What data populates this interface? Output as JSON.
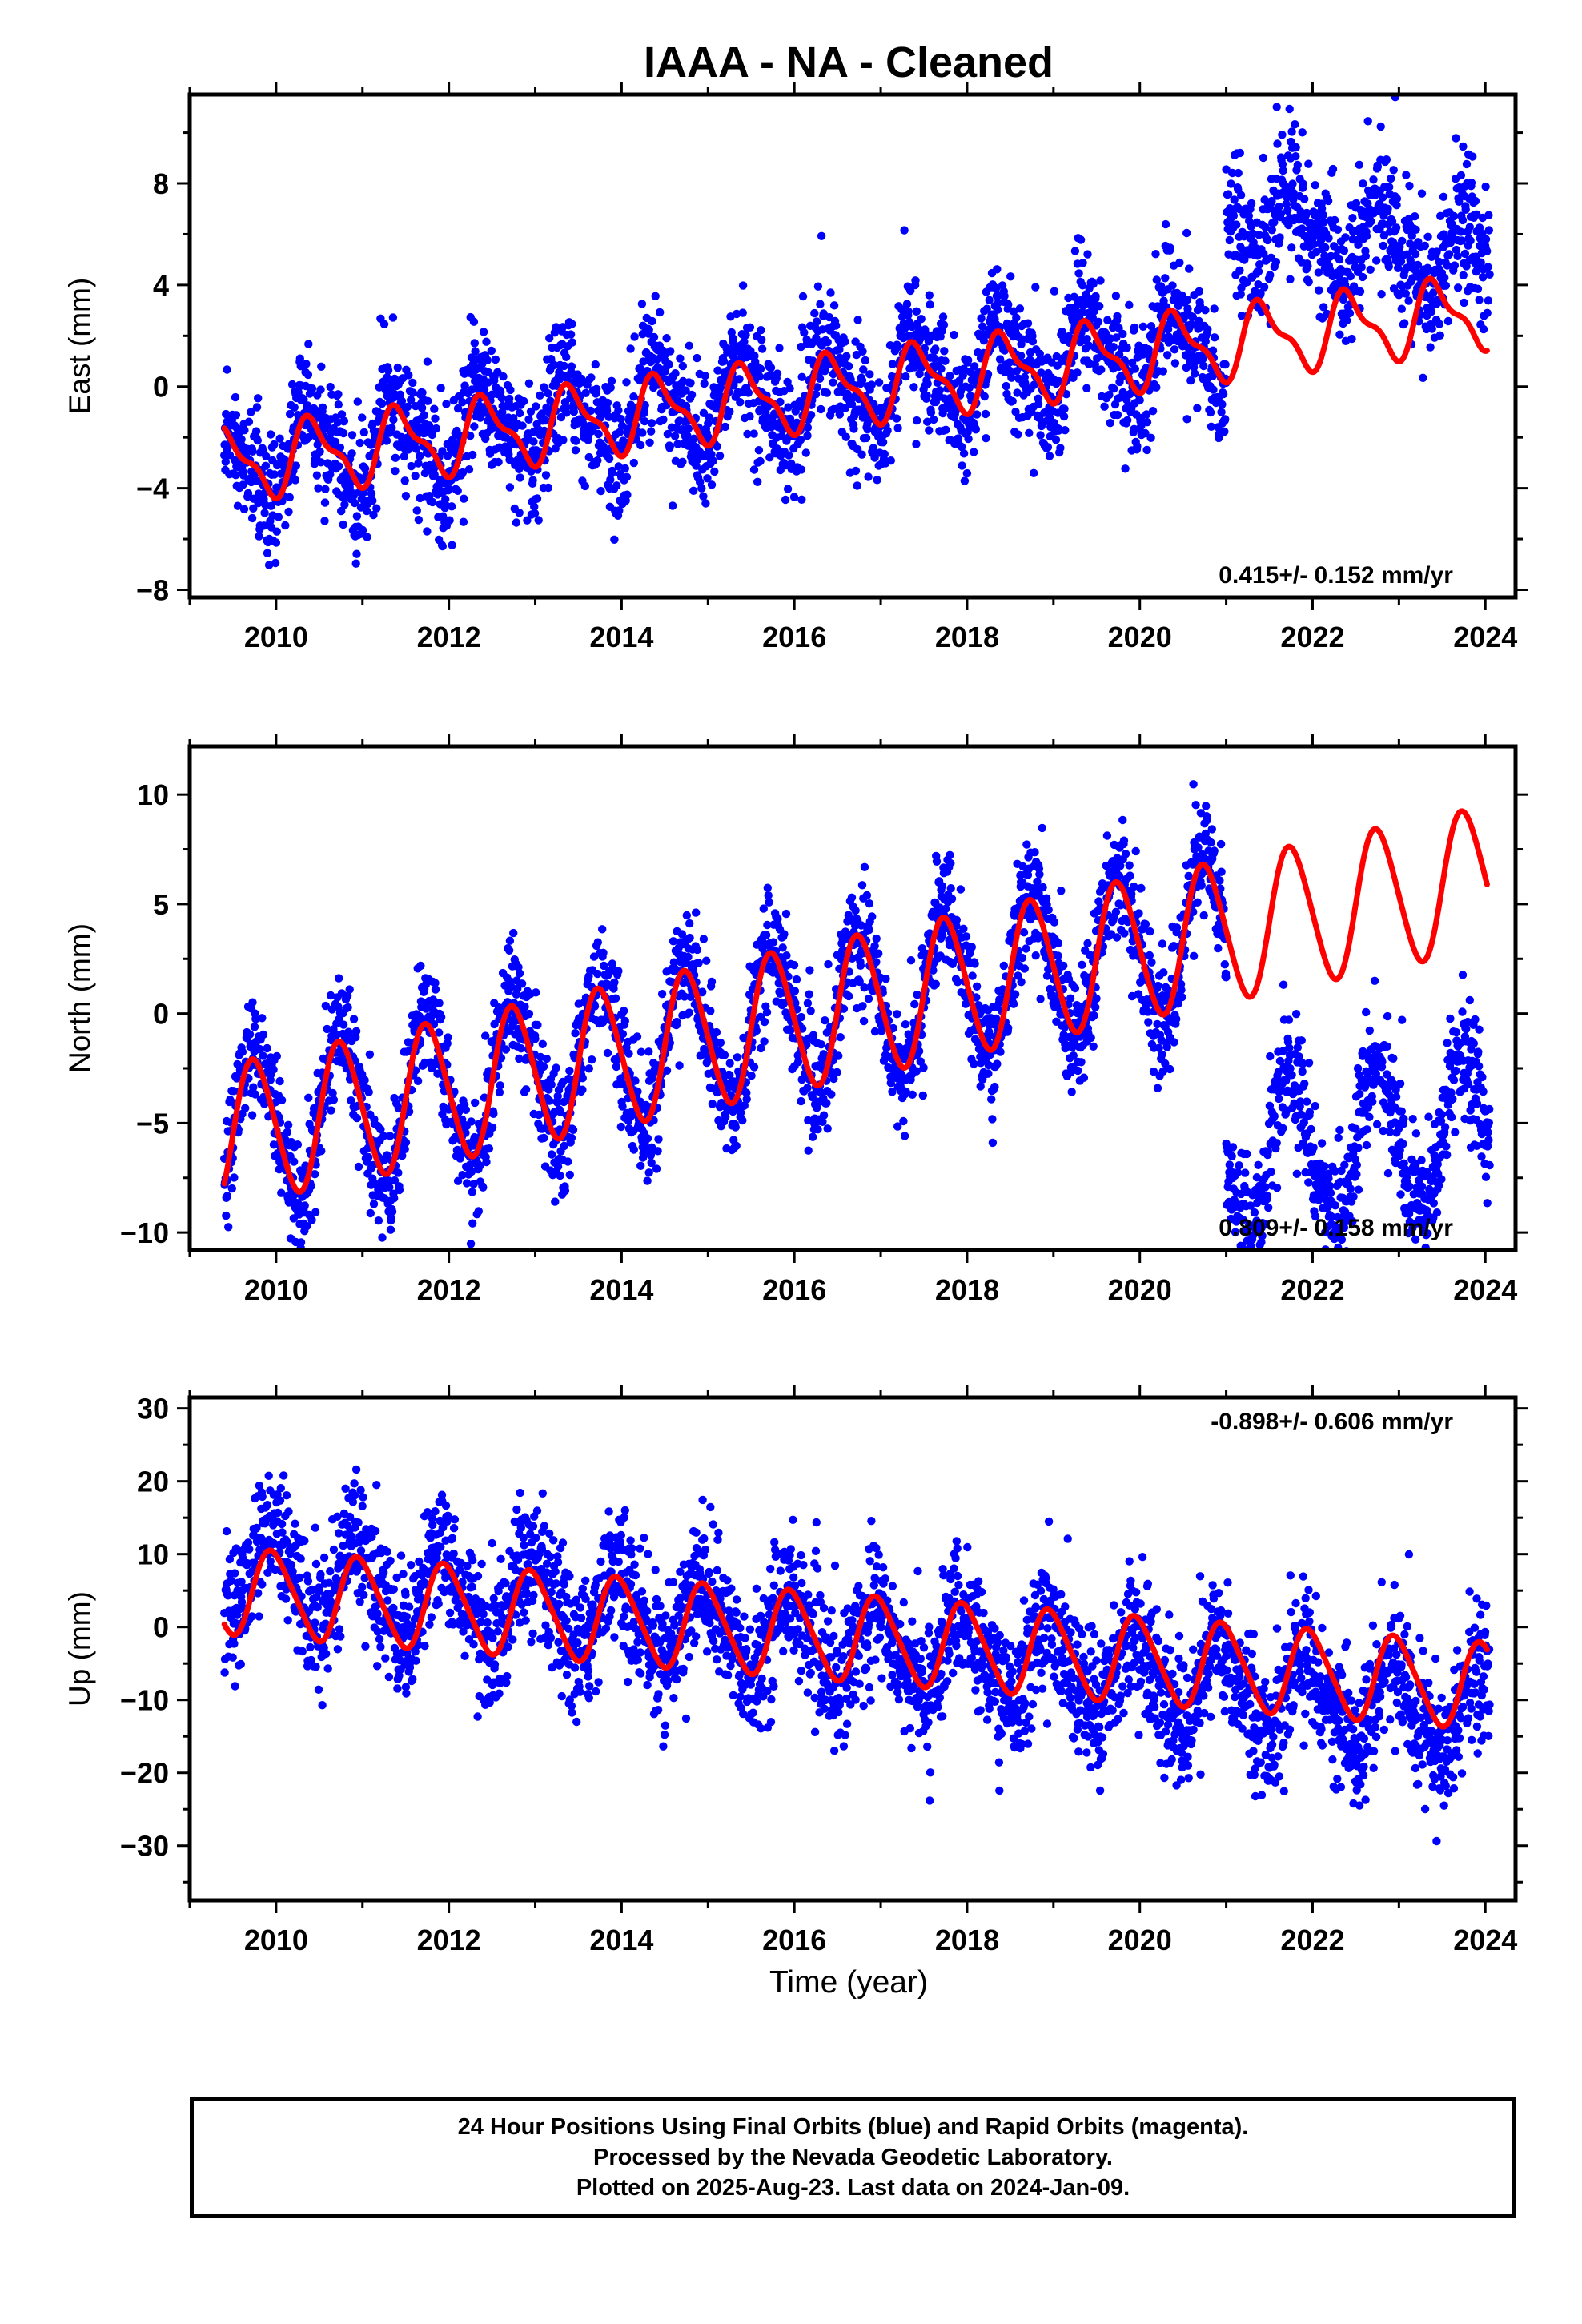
{
  "chart_data": {
    "type": "scatter",
    "title": "IAAA  - NA - Cleaned",
    "xlabel": "Time (year)",
    "x_range": [
      2009.0,
      2024.35
    ],
    "x_ticks": [
      2010,
      2012,
      2014,
      2016,
      2018,
      2020,
      2022,
      2024
    ],
    "series_colors": {
      "points": "#0000ff",
      "fit": "#ff0000"
    },
    "panels": [
      {
        "name": "east",
        "ylabel": "East (mm)",
        "ylim": [
          -8.3,
          11.5
        ],
        "yticks": [
          -8,
          -4,
          0,
          4,
          8
        ],
        "rate_text": "0.415+/- 0.152 mm/yr",
        "rate_position": "bottom-right",
        "model": {
          "segments": [
            {
              "x_start": 2009.4,
              "x_end": 2021.0,
              "t0": 2009.4,
              "offset": -3.0,
              "slope": 0.41,
              "annual_amp": 1.6,
              "annual_phase": 0.15,
              "semiannual_amp": 0.5,
              "noise": 1.2
            },
            {
              "x_start": 2021.0,
              "x_end": 2024.05,
              "t0": 2021.0,
              "offset": 6.8,
              "slope": -0.7,
              "annual_amp": 1.4,
              "annual_phase": 0.55,
              "semiannual_amp": 0.4,
              "noise": 1.3
            }
          ],
          "fit": {
            "t0": 2009.4,
            "offset": -3.1,
            "slope": 0.415,
            "annual_amp": 1.3,
            "annual_phase": 0.18,
            "semiannual_amp": 0.5
          }
        }
      },
      {
        "name": "north",
        "ylabel": "North (mm)",
        "ylim": [
          -10.8,
          12.2
        ],
        "yticks": [
          -10,
          -5,
          0,
          5,
          10
        ],
        "rate_text": "0.809+/- 0.158 mm/yr",
        "rate_position": "bottom-right",
        "model": {
          "segments": [
            {
              "x_start": 2009.4,
              "x_end": 2021.0,
              "t0": 2009.4,
              "offset": -5.5,
              "slope": 0.8,
              "annual_amp": 3.5,
              "annual_phase": 0.5,
              "semiannual_amp": 0.3,
              "noise": 1.3
            },
            {
              "x_start": 2021.0,
              "x_end": 2024.05,
              "t0": 2021.0,
              "offset": -6.5,
              "slope": 0.4,
              "annual_amp": 3.3,
              "annual_phase": 0.5,
              "semiannual_amp": 0.3,
              "noise": 1.4
            }
          ],
          "fit": {
            "t0": 2009.4,
            "offset": -5.6,
            "slope": 0.809,
            "annual_amp": 3.2,
            "annual_phase": 0.5,
            "semiannual_amp": 0.3
          }
        }
      },
      {
        "name": "up",
        "ylabel": "Up (mm)",
        "ylim": [
          -37.5,
          31.5
        ],
        "yticks": [
          -30,
          -20,
          -10,
          0,
          10,
          20,
          30
        ],
        "rate_text": "-0.898+/- 0.606 mm/yr",
        "rate_position": "top-right",
        "model": {
          "segments": [
            {
              "x_start": 2009.4,
              "x_end": 2024.05,
              "t0": 2009.4,
              "offset": 8.0,
              "slope": -1.4,
              "annual_amp": 5.5,
              "annual_phase": 0.7,
              "semiannual_amp": 1.0,
              "noise": 4.5
            }
          ],
          "fit": {
            "t0": 2009.4,
            "offset": 5.0,
            "slope": -0.898,
            "annual_amp": 5.8,
            "annual_phase": 0.72,
            "semiannual_amp": 0.8
          }
        }
      }
    ]
  },
  "footer": {
    "line1": "24 Hour Positions Using Final Orbits (blue) and Rapid Orbits (magenta).",
    "line2": "Processed by the Nevada Geodetic Laboratory.",
    "line3": "Plotted on 2025-Aug-23. Last data on 2024-Jan-09."
  }
}
